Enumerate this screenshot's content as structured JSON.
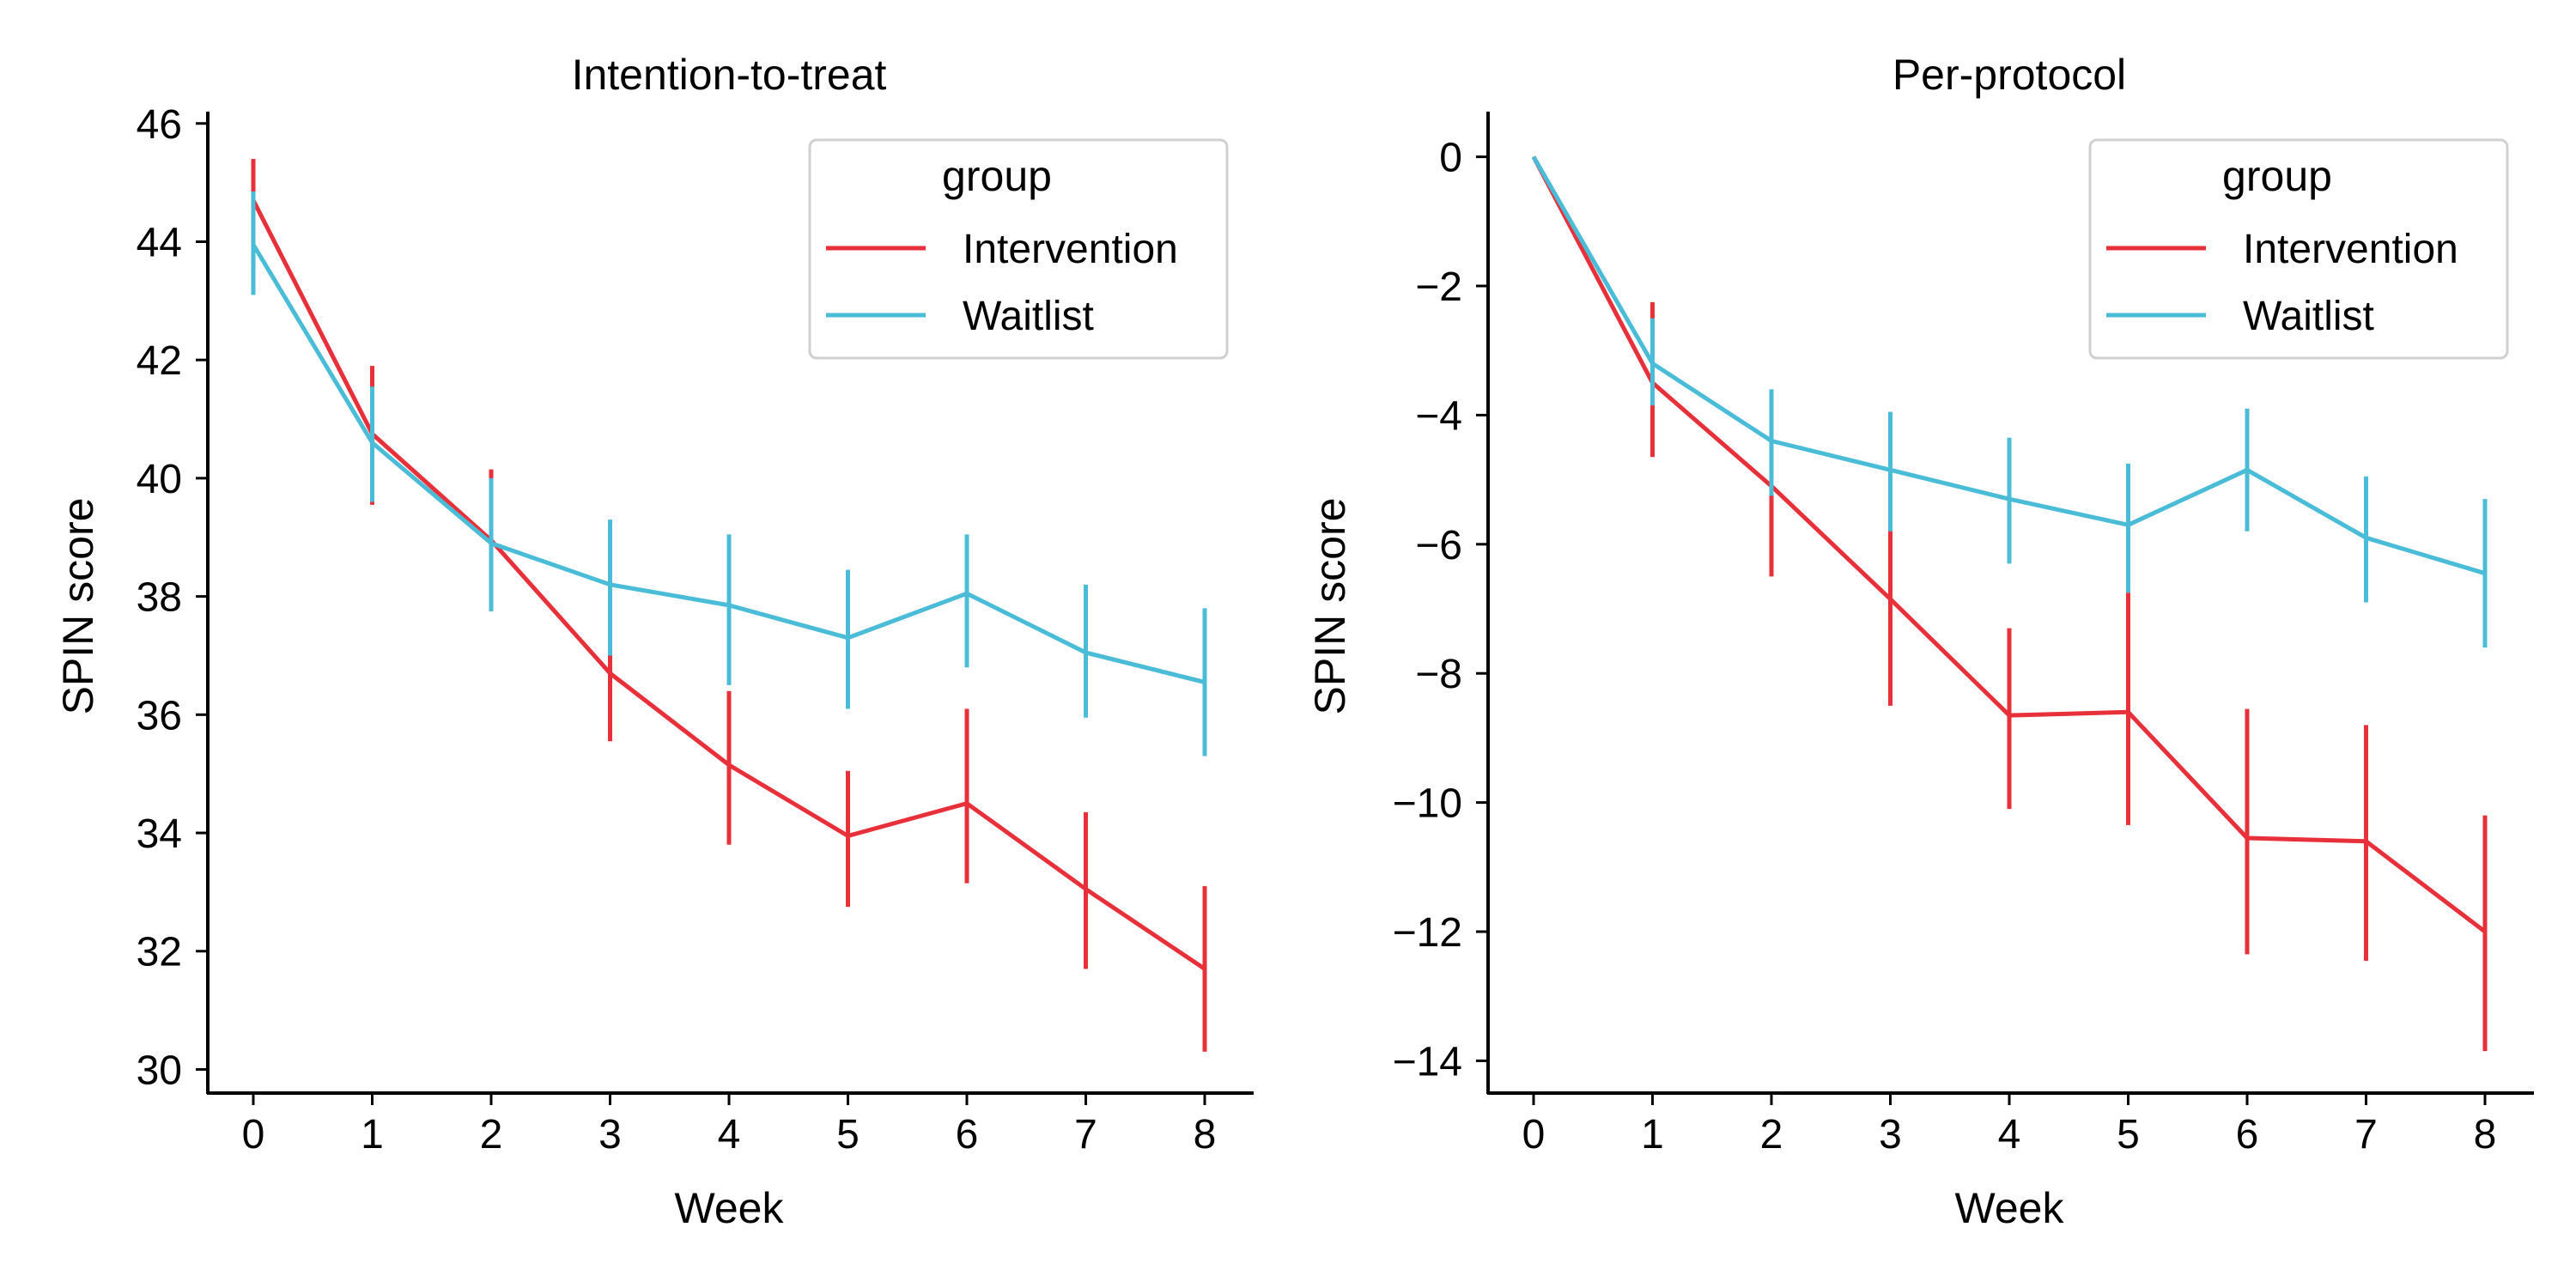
{
  "chart_data": [
    {
      "type": "line",
      "title": "Intention-to-treat",
      "xlabel": "Week",
      "ylabel": "SPIN score",
      "x": [
        0,
        1,
        2,
        3,
        4,
        5,
        6,
        7,
        8
      ],
      "xticks": [
        "0",
        "1",
        "2",
        "3",
        "4",
        "5",
        "6",
        "7",
        "8"
      ],
      "ylim": [
        29.6,
        46.2
      ],
      "yticks": [
        30,
        32,
        34,
        36,
        38,
        40,
        42,
        44,
        46
      ],
      "legend": {
        "title": "group",
        "placement": "top-right"
      },
      "grid": false,
      "series": [
        {
          "name": "Intervention",
          "color": "#E8303A",
          "values": [
            44.7,
            40.75,
            38.95,
            36.7,
            35.15,
            33.95,
            34.5,
            33.05,
            31.7
          ],
          "err_low": [
            43.9,
            39.55,
            37.75,
            35.55,
            33.8,
            32.75,
            33.15,
            31.7,
            30.3
          ],
          "err_high": [
            45.4,
            41.9,
            40.15,
            37.0,
            36.4,
            35.05,
            36.1,
            34.35,
            33.1
          ]
        },
        {
          "name": "Waitlist",
          "color": "#4ABCD7",
          "values": [
            43.95,
            40.6,
            38.9,
            38.2,
            37.85,
            37.3,
            38.05,
            37.05,
            36.55
          ],
          "err_low": [
            43.1,
            39.6,
            37.75,
            37.0,
            36.5,
            36.1,
            36.8,
            35.95,
            35.3
          ],
          "err_high": [
            44.85,
            41.55,
            40.0,
            39.3,
            39.05,
            38.45,
            39.05,
            38.2,
            37.8
          ]
        }
      ]
    },
    {
      "type": "line",
      "title": "Per-protocol",
      "xlabel": "Week",
      "ylabel": "SPIN score",
      "x": [
        0,
        1,
        2,
        3,
        4,
        5,
        6,
        7,
        8
      ],
      "xticks": [
        "0",
        "1",
        "2",
        "3",
        "4",
        "5",
        "6",
        "7",
        "8"
      ],
      "ylim": [
        -14.5,
        0.7
      ],
      "yticks": [
        0,
        -2,
        -4,
        -6,
        -8,
        -10,
        -12,
        -14
      ],
      "ytick_labels": [
        "0",
        "−2",
        "−4",
        "−6",
        "−8",
        "−10",
        "−12",
        "−14"
      ],
      "legend": {
        "title": "group",
        "placement": "top-right"
      },
      "grid": false,
      "series": [
        {
          "name": "Intervention",
          "color": "#E8303A",
          "values": [
            0,
            -3.5,
            -5.1,
            -6.85,
            -8.65,
            -8.6,
            -10.55,
            -10.6,
            -12.0
          ],
          "err_low": [
            0,
            -4.65,
            -6.5,
            -8.5,
            -10.1,
            -10.35,
            -12.35,
            -12.45,
            -13.85
          ],
          "err_high": [
            0,
            -2.25,
            -3.95,
            -5.75,
            -7.3,
            -6.75,
            -8.55,
            -8.8,
            -10.2
          ]
        },
        {
          "name": "Waitlist",
          "color": "#4ABCD7",
          "values": [
            0,
            -3.2,
            -4.4,
            -4.85,
            -5.3,
            -5.7,
            -4.85,
            -5.9,
            -6.45
          ],
          "err_low": [
            0,
            -3.85,
            -5.25,
            -5.8,
            -6.3,
            -6.75,
            -5.8,
            -6.9,
            -7.6
          ],
          "err_high": [
            0,
            -2.5,
            -3.6,
            -3.95,
            -4.35,
            -4.75,
            -3.9,
            -4.95,
            -5.3
          ]
        }
      ]
    }
  ]
}
